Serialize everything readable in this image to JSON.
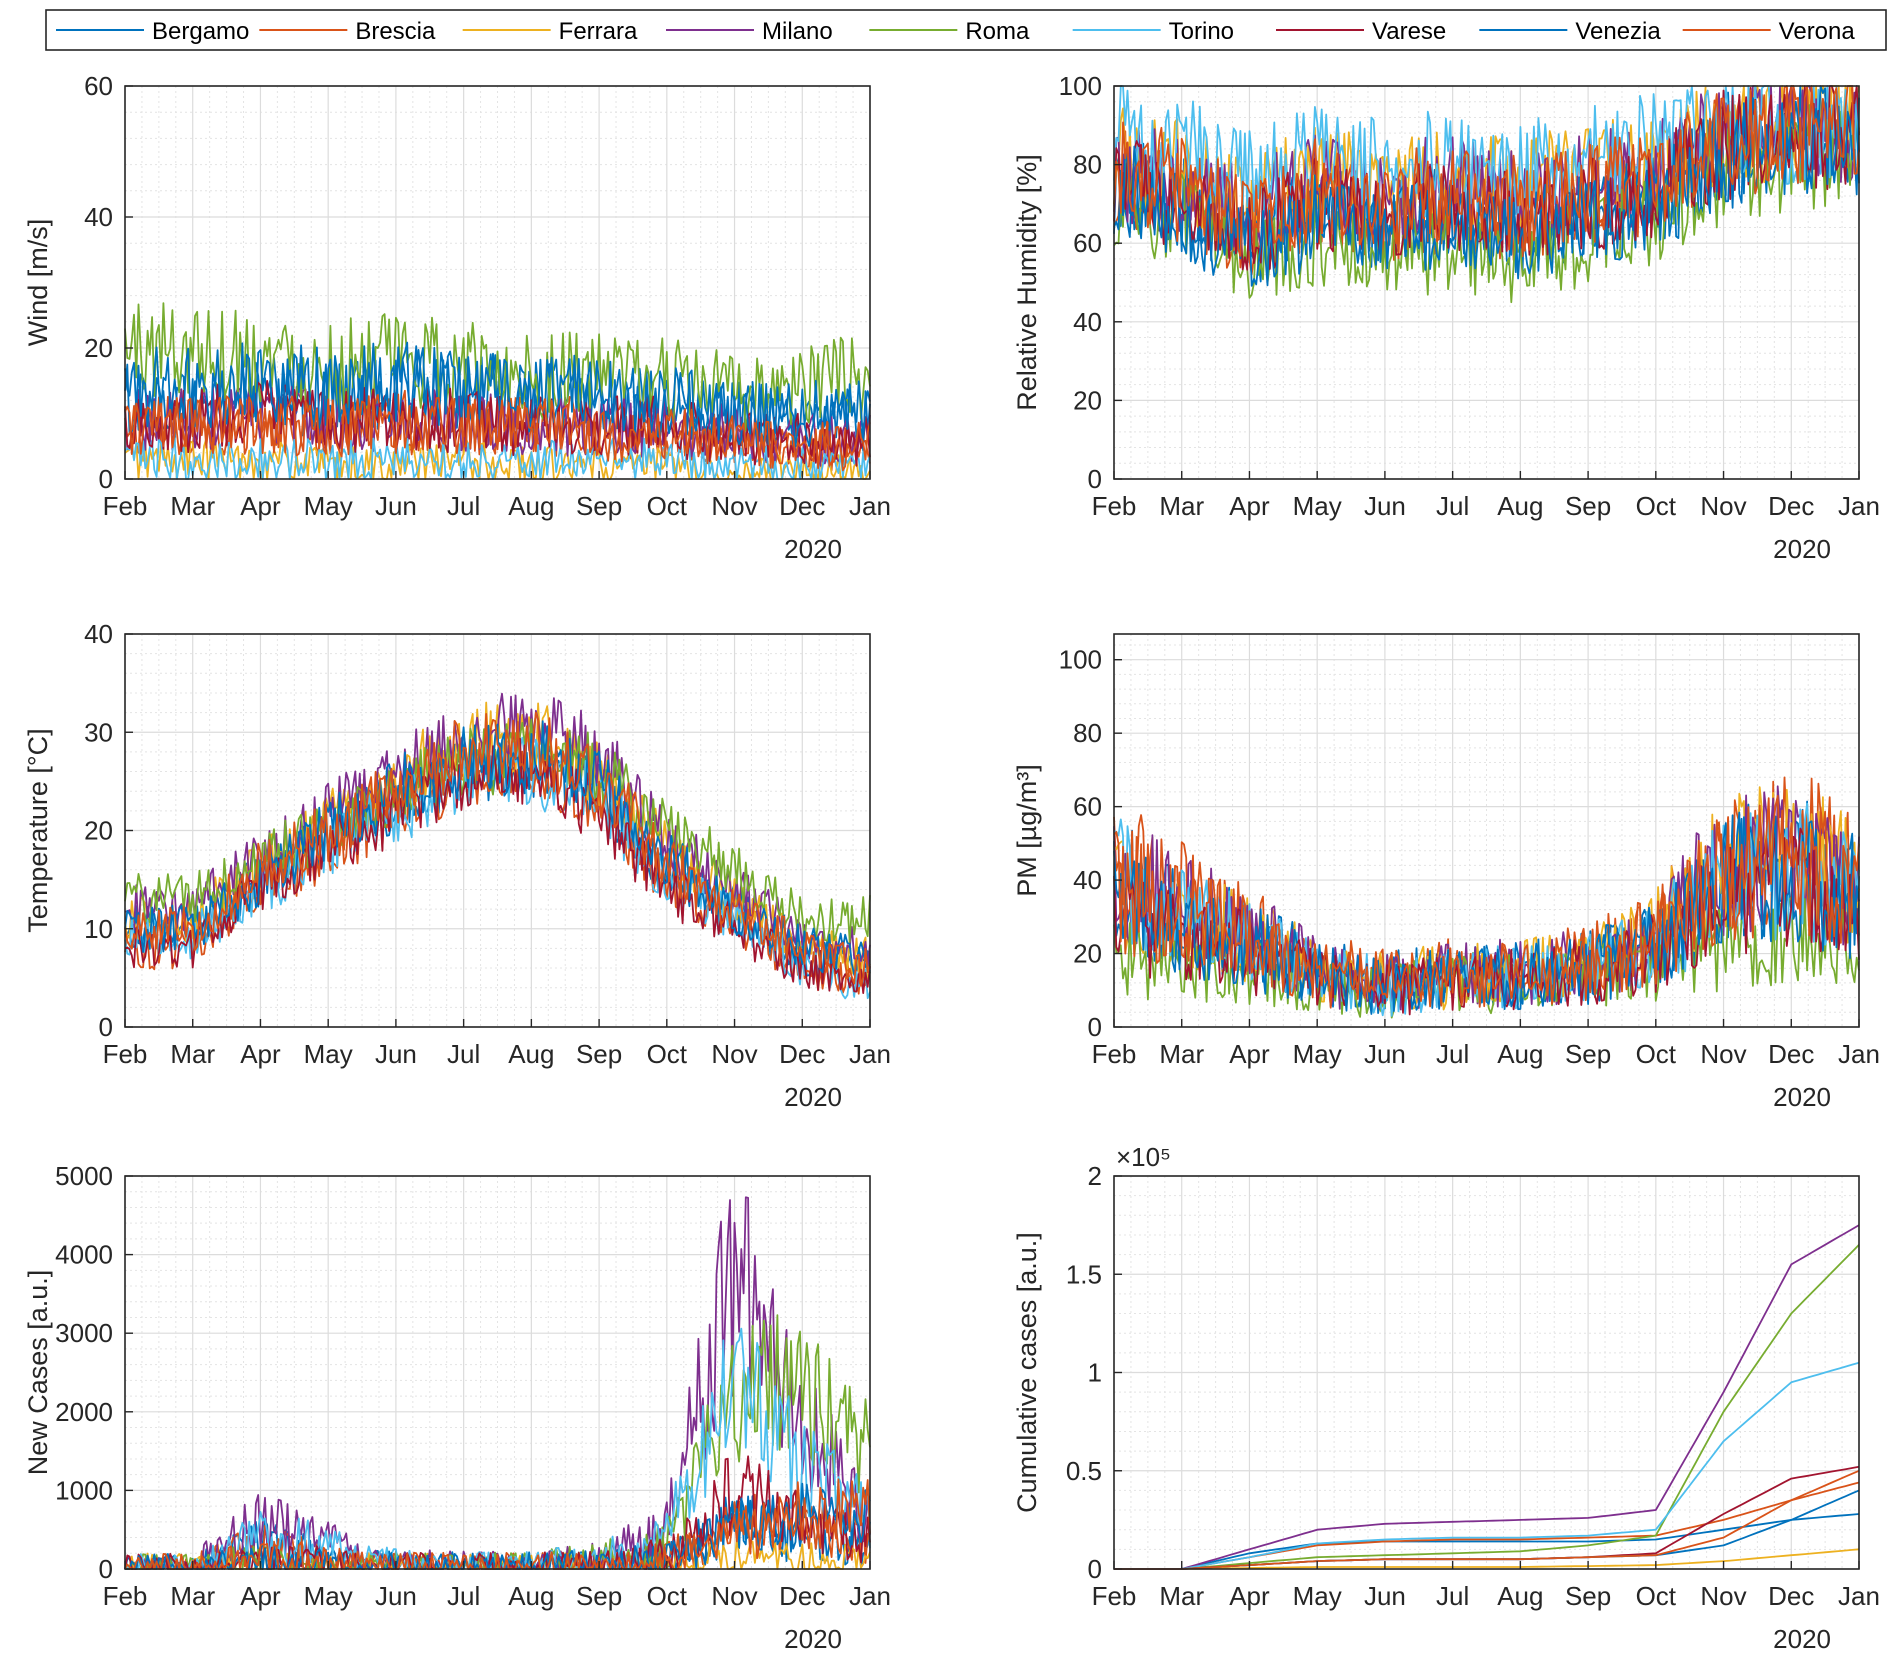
{
  "figure": {
    "year_label": "2020"
  },
  "legend": {
    "entries": [
      {
        "name": "Bergamo",
        "color": "#0072BD"
      },
      {
        "name": "Brescia",
        "color": "#D95319"
      },
      {
        "name": "Ferrara",
        "color": "#EDB120"
      },
      {
        "name": "Milano",
        "color": "#7E2F8E"
      },
      {
        "name": "Roma",
        "color": "#77AC30"
      },
      {
        "name": "Torino",
        "color": "#4DBEEE"
      },
      {
        "name": "Varese",
        "color": "#A2142F"
      },
      {
        "name": "Venezia",
        "color": "#0072BD"
      },
      {
        "name": "Verona",
        "color": "#D95319"
      }
    ]
  },
  "chart_data": [
    {
      "id": "wind",
      "type": "line",
      "ylabel": "Wind [m/s]",
      "ylim": [
        0,
        60
      ],
      "yticks": [
        "0",
        "20",
        "40",
        "60"
      ],
      "ytick_values": [
        0,
        20,
        40,
        60
      ],
      "xticks": [
        "Feb",
        "Mar",
        "Apr",
        "May",
        "Jun",
        "Jul",
        "Aug",
        "Sep",
        "Oct",
        "Nov",
        "Dec",
        "Jan"
      ],
      "xlabel": "2020",
      "series": [
        {
          "name": "Bergamo",
          "values": [
            12,
            11,
            13,
            12,
            14,
            13,
            13,
            12,
            11,
            10,
            9,
            9
          ]
        },
        {
          "name": "Brescia",
          "values": [
            8,
            8,
            9,
            8,
            9,
            8,
            8,
            8,
            7,
            6,
            5,
            5
          ]
        },
        {
          "name": "Ferrara",
          "values": [
            3,
            3,
            3,
            2,
            2,
            3,
            2,
            2,
            2,
            1,
            1,
            1
          ]
        },
        {
          "name": "Milano",
          "values": [
            9,
            9,
            10,
            9,
            9,
            9,
            8,
            8,
            8,
            7,
            6,
            6
          ]
        },
        {
          "name": "Roma",
          "values": [
            20,
            20,
            19,
            17,
            18,
            17,
            16,
            16,
            15,
            13,
            14,
            16
          ]
        },
        {
          "name": "Torino",
          "values": [
            3,
            3,
            3,
            3,
            3,
            3,
            3,
            3,
            3,
            2,
            2,
            2
          ]
        },
        {
          "name": "Varese",
          "values": [
            9,
            9,
            10,
            9,
            9,
            9,
            8,
            8,
            8,
            6,
            6,
            6
          ]
        },
        {
          "name": "Venezia",
          "values": [
            14,
            14,
            15,
            14,
            15,
            14,
            13,
            13,
            12,
            10,
            10,
            11
          ]
        },
        {
          "name": "Verona",
          "values": [
            8,
            8,
            8,
            8,
            8,
            8,
            8,
            7,
            7,
            6,
            5,
            5
          ]
        }
      ]
    },
    {
      "id": "humidity",
      "type": "line",
      "ylabel": "Relative Humidity [%]",
      "ylim": [
        0,
        100
      ],
      "yticks": [
        "0",
        "20",
        "40",
        "60",
        "80",
        "100"
      ],
      "ytick_values": [
        0,
        20,
        40,
        60,
        80,
        100
      ],
      "xticks": [
        "Feb",
        "Mar",
        "Apr",
        "May",
        "Jun",
        "Jul",
        "Aug",
        "Sep",
        "Oct",
        "Nov",
        "Dec",
        "Jan"
      ],
      "xlabel": "2020",
      "series": [
        {
          "name": "Bergamo",
          "values": [
            75,
            70,
            60,
            68,
            65,
            68,
            64,
            68,
            72,
            84,
            88,
            88
          ]
        },
        {
          "name": "Brescia",
          "values": [
            78,
            72,
            62,
            70,
            66,
            70,
            66,
            70,
            74,
            85,
            89,
            89
          ]
        },
        {
          "name": "Ferrara",
          "values": [
            82,
            78,
            70,
            78,
            74,
            78,
            74,
            78,
            80,
            88,
            91,
            91
          ]
        },
        {
          "name": "Milano",
          "values": [
            80,
            74,
            68,
            76,
            72,
            76,
            72,
            76,
            78,
            87,
            90,
            90
          ]
        },
        {
          "name": "Roma",
          "values": [
            70,
            66,
            56,
            60,
            56,
            58,
            55,
            60,
            66,
            78,
            82,
            84
          ]
        },
        {
          "name": "Torino",
          "values": [
            88,
            84,
            76,
            82,
            78,
            82,
            78,
            82,
            84,
            90,
            88,
            92
          ]
        },
        {
          "name": "Varese",
          "values": [
            76,
            70,
            62,
            70,
            66,
            70,
            66,
            70,
            74,
            85,
            88,
            88
          ]
        },
        {
          "name": "Venezia",
          "values": [
            74,
            68,
            58,
            66,
            62,
            66,
            62,
            66,
            70,
            82,
            86,
            86
          ]
        },
        {
          "name": "Verona",
          "values": [
            80,
            75,
            66,
            74,
            70,
            74,
            70,
            74,
            77,
            86,
            90,
            90
          ]
        }
      ]
    },
    {
      "id": "temperature",
      "type": "line",
      "ylabel": "Temperature [°C]",
      "ylim": [
        0,
        40
      ],
      "yticks": [
        "0",
        "10",
        "20",
        "30",
        "40"
      ],
      "ytick_values": [
        0,
        10,
        20,
        30,
        40
      ],
      "xticks": [
        "Feb",
        "Mar",
        "Apr",
        "May",
        "Jun",
        "Jul",
        "Aug",
        "Sep",
        "Oct",
        "Nov",
        "Dec",
        "Jan"
      ],
      "xlabel": "2020",
      "series": [
        {
          "name": "Bergamo",
          "values": [
            10,
            10,
            15,
            19,
            23,
            26,
            27,
            24,
            16,
            12,
            7,
            6
          ]
        },
        {
          "name": "Brescia",
          "values": [
            8,
            8,
            14,
            18,
            22,
            26,
            27,
            23,
            15,
            11,
            6,
            5
          ]
        },
        {
          "name": "Ferrara",
          "values": [
            11,
            11,
            16,
            21,
            25,
            29,
            30,
            26,
            18,
            13,
            8,
            7
          ]
        },
        {
          "name": "Milano",
          "values": [
            12,
            12,
            17,
            22,
            26,
            29,
            31,
            28,
            19,
            14,
            9,
            8
          ]
        },
        {
          "name": "Roma",
          "values": [
            13,
            13,
            17,
            20,
            24,
            27,
            28,
            26,
            20,
            16,
            11,
            11
          ]
        },
        {
          "name": "Torino",
          "values": [
            9,
            9,
            14,
            18,
            22,
            25,
            26,
            23,
            15,
            11,
            6,
            4
          ]
        },
        {
          "name": "Varese",
          "values": [
            8,
            8,
            14,
            18,
            22,
            25,
            26,
            22,
            14,
            10,
            6,
            5
          ]
        },
        {
          "name": "Venezia",
          "values": [
            10,
            10,
            15,
            20,
            24,
            27,
            28,
            25,
            17,
            12,
            8,
            7
          ]
        },
        {
          "name": "Verona",
          "values": [
            10,
            10,
            16,
            20,
            24,
            28,
            29,
            25,
            17,
            12,
            8,
            6
          ]
        }
      ]
    },
    {
      "id": "pm",
      "type": "line",
      "ylabel": "PM [µg/m³]",
      "ylim": [
        0,
        107
      ],
      "yticks": [
        "0",
        "20",
        "40",
        "60",
        "80",
        "100"
      ],
      "ytick_values": [
        0,
        20,
        40,
        60,
        80,
        100
      ],
      "xticks": [
        "Feb",
        "Mar",
        "Apr",
        "May",
        "Jun",
        "Jul",
        "Aug",
        "Sep",
        "Oct",
        "Nov",
        "Dec",
        "Jan"
      ],
      "xlabel": "2020",
      "series": [
        {
          "name": "Bergamo",
          "values": [
            40,
            30,
            25,
            15,
            12,
            14,
            15,
            16,
            22,
            40,
            45,
            35
          ]
        },
        {
          "name": "Brescia",
          "values": [
            45,
            35,
            26,
            16,
            13,
            15,
            16,
            18,
            25,
            45,
            50,
            40
          ]
        },
        {
          "name": "Ferrara",
          "values": [
            38,
            30,
            24,
            15,
            12,
            14,
            15,
            17,
            26,
            45,
            48,
            38
          ]
        },
        {
          "name": "Milano",
          "values": [
            42,
            32,
            25,
            15,
            12,
            14,
            15,
            17,
            24,
            44,
            48,
            38
          ]
        },
        {
          "name": "Roma",
          "values": [
            20,
            16,
            15,
            12,
            10,
            12,
            12,
            13,
            16,
            22,
            24,
            20
          ]
        },
        {
          "name": "Torino",
          "values": [
            40,
            30,
            22,
            14,
            11,
            13,
            14,
            16,
            22,
            40,
            44,
            36
          ]
        },
        {
          "name": "Varese",
          "values": [
            30,
            24,
            20,
            13,
            10,
            12,
            13,
            15,
            20,
            34,
            38,
            30
          ]
        },
        {
          "name": "Venezia",
          "values": [
            35,
            28,
            22,
            14,
            11,
            13,
            14,
            16,
            22,
            40,
            42,
            34
          ]
        },
        {
          "name": "Verona",
          "values": [
            38,
            30,
            24,
            15,
            12,
            14,
            15,
            17,
            24,
            42,
            46,
            36
          ]
        }
      ]
    },
    {
      "id": "new_cases",
      "type": "line",
      "ylabel": "New Cases [a.u.]",
      "ylim": [
        0,
        5000
      ],
      "yticks": [
        "0",
        "1000",
        "2000",
        "3000",
        "4000",
        "5000"
      ],
      "ytick_values": [
        0,
        1000,
        2000,
        3000,
        4000,
        5000
      ],
      "xticks": [
        "Feb",
        "Mar",
        "Apr",
        "May",
        "Jun",
        "Jul",
        "Aug",
        "Sep",
        "Oct",
        "Nov",
        "Dec",
        "Jan"
      ],
      "xlabel": "2020",
      "series": [
        {
          "name": "Bergamo",
          "values": [
            0,
            0,
            350,
            120,
            20,
            10,
            10,
            30,
            100,
            600,
            400,
            300
          ]
        },
        {
          "name": "Brescia",
          "values": [
            0,
            0,
            300,
            100,
            20,
            10,
            10,
            30,
            100,
            600,
            500,
            400
          ]
        },
        {
          "name": "Ferrara",
          "values": [
            0,
            0,
            20,
            10,
            0,
            0,
            0,
            10,
            20,
            150,
            100,
            80
          ]
        },
        {
          "name": "Milano",
          "values": [
            0,
            0,
            600,
            300,
            40,
            20,
            20,
            100,
            500,
            3800,
            1800,
            700
          ]
        },
        {
          "name": "Roma",
          "values": [
            0,
            0,
            100,
            60,
            20,
            10,
            20,
            150,
            300,
            2400,
            2200,
            1400
          ]
        },
        {
          "name": "Torino",
          "values": [
            0,
            0,
            400,
            300,
            40,
            20,
            20,
            100,
            400,
            2500,
            1300,
            700
          ]
        },
        {
          "name": "Varese",
          "values": [
            0,
            0,
            100,
            60,
            10,
            0,
            10,
            30,
            200,
            1000,
            600,
            400
          ]
        },
        {
          "name": "Venezia",
          "values": [
            0,
            0,
            100,
            50,
            10,
            0,
            10,
            40,
            100,
            500,
            700,
            600
          ]
        },
        {
          "name": "Verona",
          "values": [
            0,
            0,
            150,
            80,
            10,
            0,
            10,
            40,
            100,
            400,
            700,
            700
          ]
        }
      ]
    },
    {
      "id": "cumulative",
      "type": "line",
      "ylabel": "Cumulative cases [a.u.]",
      "ylim": [
        0,
        2
      ],
      "yticks": [
        "0",
        "0.5",
        "1",
        "1.5",
        "2"
      ],
      "ytick_values": [
        0,
        0.5,
        1,
        1.5,
        2
      ],
      "exponent_label": "×10⁵",
      "xticks": [
        "Feb",
        "Mar",
        "Apr",
        "May",
        "Jun",
        "Jul",
        "Aug",
        "Sep",
        "Oct",
        "Nov",
        "Dec",
        "Jan"
      ],
      "xlabel": "2020",
      "series": [
        {
          "name": "Bergamo",
          "values": [
            0,
            0,
            0.08,
            0.13,
            0.14,
            0.14,
            0.14,
            0.14,
            0.15,
            0.2,
            0.25,
            0.28
          ]
        },
        {
          "name": "Brescia",
          "values": [
            0,
            0,
            0.06,
            0.12,
            0.14,
            0.15,
            0.15,
            0.16,
            0.17,
            0.25,
            0.35,
            0.44
          ]
        },
        {
          "name": "Ferrara",
          "values": [
            0,
            0,
            0.005,
            0.01,
            0.01,
            0.01,
            0.01,
            0.015,
            0.02,
            0.04,
            0.07,
            0.1
          ]
        },
        {
          "name": "Milano",
          "values": [
            0,
            0,
            0.1,
            0.2,
            0.23,
            0.24,
            0.25,
            0.26,
            0.3,
            0.9,
            1.55,
            1.75
          ]
        },
        {
          "name": "Roma",
          "values": [
            0,
            0,
            0.03,
            0.06,
            0.07,
            0.08,
            0.09,
            0.12,
            0.17,
            0.8,
            1.3,
            1.65
          ]
        },
        {
          "name": "Torino",
          "values": [
            0,
            0,
            0.06,
            0.13,
            0.15,
            0.16,
            0.16,
            0.17,
            0.2,
            0.65,
            0.95,
            1.05
          ]
        },
        {
          "name": "Varese",
          "values": [
            0,
            0,
            0.02,
            0.04,
            0.05,
            0.05,
            0.05,
            0.06,
            0.08,
            0.28,
            0.46,
            0.52
          ]
        },
        {
          "name": "Venezia",
          "values": [
            0,
            0,
            0.02,
            0.04,
            0.05,
            0.05,
            0.05,
            0.06,
            0.07,
            0.12,
            0.25,
            0.4
          ]
        },
        {
          "name": "Verona",
          "values": [
            0,
            0,
            0.02,
            0.04,
            0.05,
            0.05,
            0.05,
            0.06,
            0.07,
            0.16,
            0.35,
            0.5
          ]
        }
      ]
    }
  ]
}
